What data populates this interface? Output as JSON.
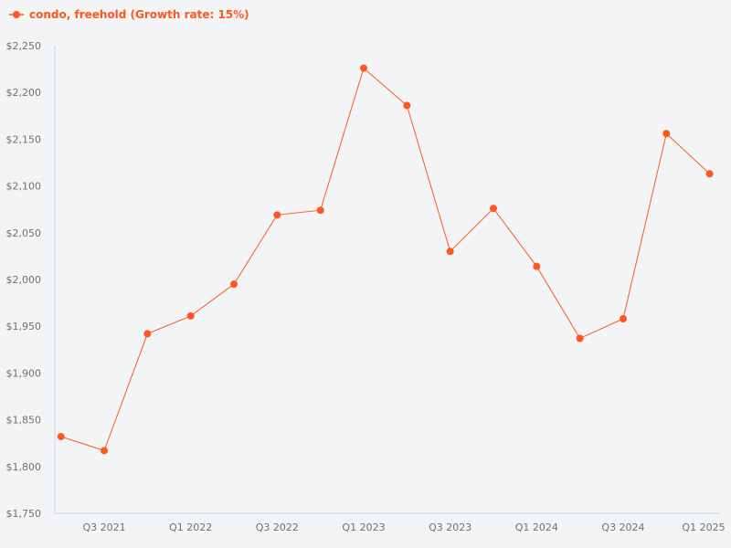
{
  "legend": {
    "label": "condo, freehold (Growth rate: 15%)",
    "icon": "line-marker-icon",
    "color": "#FF5722"
  },
  "colors": {
    "series": "#FF5722",
    "axis": "#C8D4EA",
    "background": "#F3F4F6",
    "tick_text": "#707070"
  },
  "chart_data": {
    "type": "line",
    "title": "",
    "xlabel": "",
    "ylabel": "",
    "ylim": [
      1750,
      2250
    ],
    "yticks": [
      "$1,750",
      "$1,800",
      "$1,850",
      "$1,900",
      "$1,950",
      "$2,000",
      "$2,050",
      "$2,100",
      "$2,150",
      "$2,200",
      "$2,250"
    ],
    "xtick_labels": [
      "Q3 2021",
      "Q1 2022",
      "Q3 2022",
      "Q1 2023",
      "Q3 2023",
      "Q1 2024",
      "Q3 2024",
      "Q1 2025"
    ],
    "grid": false,
    "legend_position": "top-left",
    "categories": [
      "Q2 2021",
      "Q3 2021",
      "Q4 2021",
      "Q1 2022",
      "Q2 2022",
      "Q3 2022",
      "Q4 2022",
      "Q1 2023",
      "Q2 2023",
      "Q3 2023",
      "Q4 2023",
      "Q1 2024",
      "Q2 2024",
      "Q3 2024",
      "Q4 2024",
      "Q1 2025"
    ],
    "series": [
      {
        "name": "condo, freehold (Growth rate: 15%)",
        "values": [
          1832,
          1817,
          1942,
          1961,
          1995,
          2069,
          2074,
          2226,
          2186,
          2030,
          2076,
          2014,
          1937,
          1958,
          2156,
          2113
        ]
      }
    ]
  }
}
